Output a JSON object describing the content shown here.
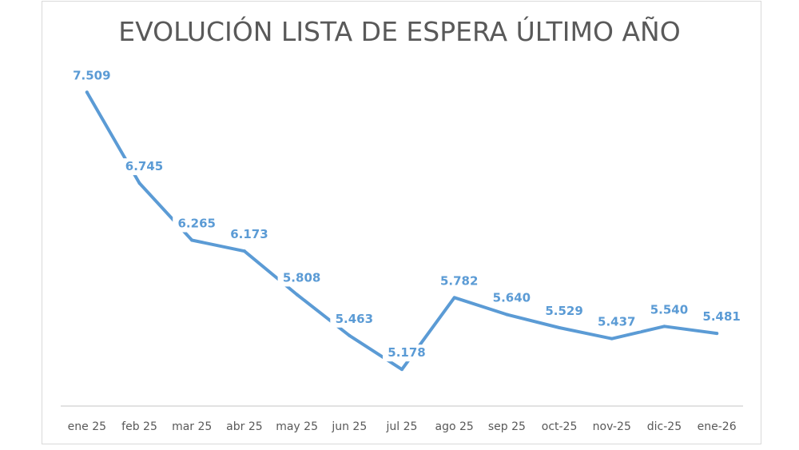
{
  "chart_data": {
    "type": "line",
    "title": "EVOLUCIÓN LISTA DE ESPERA ÚLTIMO AÑO",
    "xlabel": "",
    "ylabel": "",
    "categories": [
      "ene 25",
      "feb 25",
      "mar 25",
      "abr 25",
      "may 25",
      "jun 25",
      "jul 25",
      "ago 25",
      "sep 25",
      "oct-25",
      "nov-25",
      "dic-25",
      "ene-26"
    ],
    "series": [
      {
        "name": "Lista de espera",
        "values": [
          7509,
          6745,
          6265,
          6173,
          5808,
          5463,
          5178,
          5782,
          5640,
          5529,
          5437,
          5540,
          5481
        ],
        "labels": [
          "7.509",
          "6.745",
          "6.265",
          "6.173",
          "5.808",
          "5.463",
          "5.178",
          "5.782",
          "5.640",
          "5.529",
          "5.437",
          "5.540",
          "5.481"
        ],
        "color": "#5b9bd5"
      }
    ],
    "ylim": [
      4870,
      7680
    ],
    "grid": false,
    "legend": "none"
  }
}
